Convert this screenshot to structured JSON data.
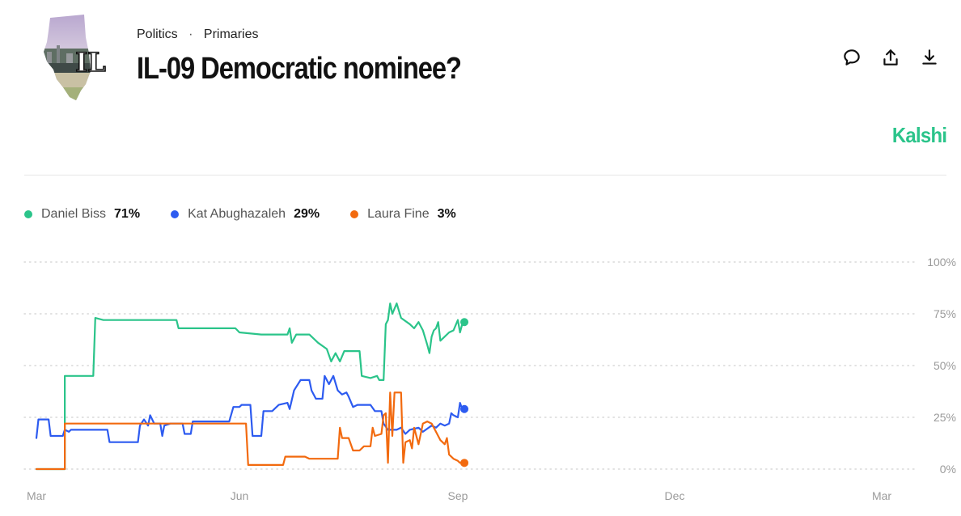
{
  "breadcrumb": {
    "category": "Politics",
    "separator": "·",
    "subcategory": "Primaries"
  },
  "header": {
    "title": "IL-09 Democratic nominee?",
    "thumbnail_text": "IL"
  },
  "brand": {
    "name": "Kalshi",
    "color": "#2bc48a"
  },
  "actions": [
    {
      "icon": "comment-icon"
    },
    {
      "icon": "share-icon"
    },
    {
      "icon": "download-icon"
    }
  ],
  "legend": [
    {
      "name": "Daniel Biss",
      "value": "71%",
      "color": "#2bc48a"
    },
    {
      "name": "Kat Abughazaleh",
      "value": "29%",
      "color": "#2d5bf0"
    },
    {
      "name": "Laura Fine",
      "value": "3%",
      "color": "#f26a0f"
    }
  ],
  "chart_data": {
    "type": "line",
    "x_ticks": [
      "Mar",
      "Jun",
      "Sep",
      "Dec",
      "Mar"
    ],
    "y_ticks": [
      "100%",
      "75%",
      "50%",
      "25%",
      "0%"
    ],
    "ylim": [
      0,
      100
    ],
    "grid": true,
    "series": [
      {
        "name": "Daniel Biss",
        "color": "#2bc48a",
        "points": [
          [
            0,
            0
          ],
          [
            0.14,
            0
          ],
          [
            0.14,
            45
          ],
          [
            0.28,
            45
          ],
          [
            0.29,
            73
          ],
          [
            0.33,
            72
          ],
          [
            0.69,
            72
          ],
          [
            0.7,
            68
          ],
          [
            0.98,
            68
          ],
          [
            1.0,
            66
          ],
          [
            1.1,
            65
          ],
          [
            1.22,
            65
          ],
          [
            1.23,
            68
          ],
          [
            1.24,
            61
          ],
          [
            1.26,
            65
          ],
          [
            1.32,
            65
          ],
          [
            1.36,
            61
          ],
          [
            1.4,
            58
          ],
          [
            1.42,
            52
          ],
          [
            1.44,
            56
          ],
          [
            1.46,
            52
          ],
          [
            1.48,
            57
          ],
          [
            1.55,
            57
          ],
          [
            1.56,
            45
          ],
          [
            1.6,
            44
          ],
          [
            1.63,
            45
          ],
          [
            1.64,
            43
          ],
          [
            1.66,
            43
          ],
          [
            1.67,
            70
          ],
          [
            1.68,
            72
          ],
          [
            1.69,
            80
          ],
          [
            1.7,
            75
          ],
          [
            1.72,
            80
          ],
          [
            1.74,
            73
          ],
          [
            1.78,
            70
          ],
          [
            1.8,
            68
          ],
          [
            1.82,
            71
          ],
          [
            1.84,
            67
          ],
          [
            1.86,
            60
          ],
          [
            1.87,
            56
          ],
          [
            1.88,
            64
          ],
          [
            1.89,
            67
          ],
          [
            1.9,
            68
          ],
          [
            1.91,
            71
          ],
          [
            1.92,
            62
          ],
          [
            1.94,
            64
          ],
          [
            1.96,
            66
          ],
          [
            1.98,
            67
          ],
          [
            2.0,
            72
          ],
          [
            2.01,
            66
          ],
          [
            2.02,
            70
          ],
          [
            2.03,
            71
          ]
        ]
      },
      {
        "name": "Kat Abughazaleh",
        "color": "#2d5bf0",
        "points": [
          [
            0,
            15
          ],
          [
            0.01,
            24
          ],
          [
            0.06,
            24
          ],
          [
            0.07,
            16
          ],
          [
            0.13,
            16
          ],
          [
            0.14,
            19
          ],
          [
            0.16,
            18
          ],
          [
            0.17,
            19
          ],
          [
            0.35,
            19
          ],
          [
            0.36,
            13
          ],
          [
            0.5,
            13
          ],
          [
            0.51,
            21
          ],
          [
            0.53,
            24
          ],
          [
            0.55,
            21
          ],
          [
            0.56,
            26
          ],
          [
            0.58,
            22
          ],
          [
            0.61,
            22
          ],
          [
            0.62,
            16
          ],
          [
            0.63,
            21
          ],
          [
            0.66,
            22
          ],
          [
            0.72,
            22
          ],
          [
            0.73,
            17
          ],
          [
            0.76,
            17
          ],
          [
            0.77,
            23
          ],
          [
            0.95,
            23
          ],
          [
            0.97,
            30
          ],
          [
            1.0,
            30
          ],
          [
            1.01,
            31
          ],
          [
            1.05,
            31
          ],
          [
            1.06,
            16
          ],
          [
            1.1,
            16
          ],
          [
            1.11,
            28
          ],
          [
            1.15,
            28
          ],
          [
            1.18,
            31
          ],
          [
            1.22,
            32
          ],
          [
            1.23,
            29
          ],
          [
            1.25,
            38
          ],
          [
            1.28,
            43
          ],
          [
            1.32,
            43
          ],
          [
            1.33,
            38
          ],
          [
            1.35,
            34
          ],
          [
            1.38,
            34
          ],
          [
            1.39,
            45
          ],
          [
            1.41,
            41
          ],
          [
            1.43,
            45
          ],
          [
            1.45,
            38
          ],
          [
            1.47,
            36
          ],
          [
            1.49,
            37
          ],
          [
            1.5,
            35
          ],
          [
            1.52,
            30
          ],
          [
            1.54,
            31
          ],
          [
            1.6,
            31
          ],
          [
            1.62,
            28
          ],
          [
            1.65,
            28
          ],
          [
            1.66,
            22
          ],
          [
            1.68,
            19
          ],
          [
            1.72,
            19
          ],
          [
            1.74,
            20
          ],
          [
            1.76,
            17
          ],
          [
            1.78,
            19
          ],
          [
            1.82,
            20
          ],
          [
            1.84,
            18
          ],
          [
            1.88,
            21
          ],
          [
            1.9,
            20
          ],
          [
            1.92,
            22
          ],
          [
            1.94,
            21
          ],
          [
            1.96,
            22
          ],
          [
            1.97,
            27
          ],
          [
            1.98,
            26
          ],
          [
            2.0,
            25
          ],
          [
            2.01,
            32
          ],
          [
            2.02,
            29
          ],
          [
            2.03,
            29
          ]
        ]
      },
      {
        "name": "Laura Fine",
        "color": "#f26a0f",
        "points": [
          [
            0,
            0
          ],
          [
            0.14,
            0
          ],
          [
            0.14,
            22
          ],
          [
            0.35,
            22
          ],
          [
            0.36,
            22
          ],
          [
            1.03,
            22
          ],
          [
            1.04,
            2
          ],
          [
            1.2,
            2
          ],
          [
            1.21,
            6
          ],
          [
            1.3,
            6
          ],
          [
            1.32,
            5
          ],
          [
            1.45,
            5
          ],
          [
            1.46,
            20
          ],
          [
            1.47,
            15
          ],
          [
            1.5,
            15
          ],
          [
            1.52,
            9
          ],
          [
            1.55,
            9
          ],
          [
            1.57,
            11
          ],
          [
            1.6,
            11
          ],
          [
            1.61,
            20
          ],
          [
            1.62,
            16
          ],
          [
            1.65,
            17
          ],
          [
            1.66,
            26
          ],
          [
            1.67,
            27
          ],
          [
            1.68,
            3
          ],
          [
            1.69,
            37
          ],
          [
            1.7,
            16
          ],
          [
            1.71,
            37
          ],
          [
            1.74,
            37
          ],
          [
            1.75,
            3
          ],
          [
            1.76,
            13
          ],
          [
            1.78,
            14
          ],
          [
            1.79,
            10
          ],
          [
            1.8,
            20
          ],
          [
            1.82,
            12
          ],
          [
            1.84,
            22
          ],
          [
            1.86,
            23
          ],
          [
            1.88,
            22
          ],
          [
            1.9,
            18
          ],
          [
            1.92,
            14
          ],
          [
            1.94,
            12
          ],
          [
            1.95,
            15
          ],
          [
            1.96,
            7
          ],
          [
            1.98,
            5
          ],
          [
            2.0,
            4
          ],
          [
            2.01,
            3
          ],
          [
            2.03,
            3
          ]
        ]
      }
    ]
  }
}
